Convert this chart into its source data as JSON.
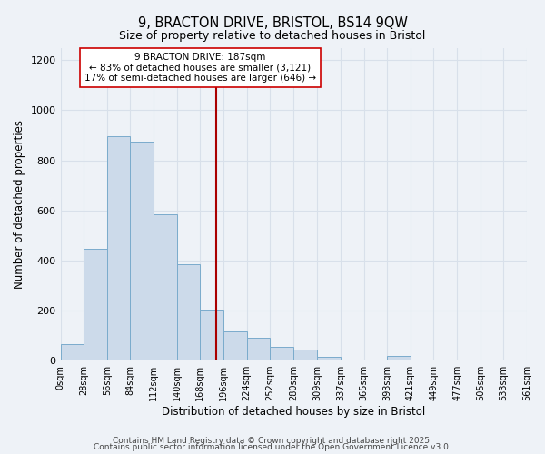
{
  "title": "9, BRACTON DRIVE, BRISTOL, BS14 9QW",
  "subtitle": "Size of property relative to detached houses in Bristol",
  "xlabel": "Distribution of detached houses by size in Bristol",
  "ylabel": "Number of detached properties",
  "bar_color": "#ccdaea",
  "bar_edge_color": "#7aabcc",
  "background_color": "#eef2f7",
  "grid_color": "#d8e0ea",
  "bin_edges": [
    0,
    28,
    56,
    84,
    112,
    140,
    168,
    196,
    224,
    252,
    280,
    309,
    337,
    365,
    393,
    421,
    449,
    477,
    505,
    533,
    561
  ],
  "bin_labels": [
    "0sqm",
    "28sqm",
    "56sqm",
    "84sqm",
    "112sqm",
    "140sqm",
    "168sqm",
    "196sqm",
    "224sqm",
    "252sqm",
    "280sqm",
    "309sqm",
    "337sqm",
    "365sqm",
    "393sqm",
    "421sqm",
    "449sqm",
    "477sqm",
    "505sqm",
    "533sqm",
    "561sqm"
  ],
  "counts": [
    65,
    445,
    895,
    875,
    585,
    385,
    205,
    115,
    90,
    55,
    45,
    15,
    0,
    0,
    18,
    0,
    0,
    0,
    0,
    0
  ],
  "vline_x": 187,
  "vline_color": "#aa0000",
  "annotation_text": "9 BRACTON DRIVE: 187sqm\n← 83% of detached houses are smaller (3,121)\n17% of semi-detached houses are larger (646) →",
  "annotation_box_color": "#ffffff",
  "annotation_box_edge": "#cc0000",
  "ylim": [
    0,
    1250
  ],
  "yticks": [
    0,
    200,
    400,
    600,
    800,
    1000,
    1200
  ],
  "footer1": "Contains HM Land Registry data © Crown copyright and database right 2025.",
  "footer2": "Contains public sector information licensed under the Open Government Licence v3.0."
}
